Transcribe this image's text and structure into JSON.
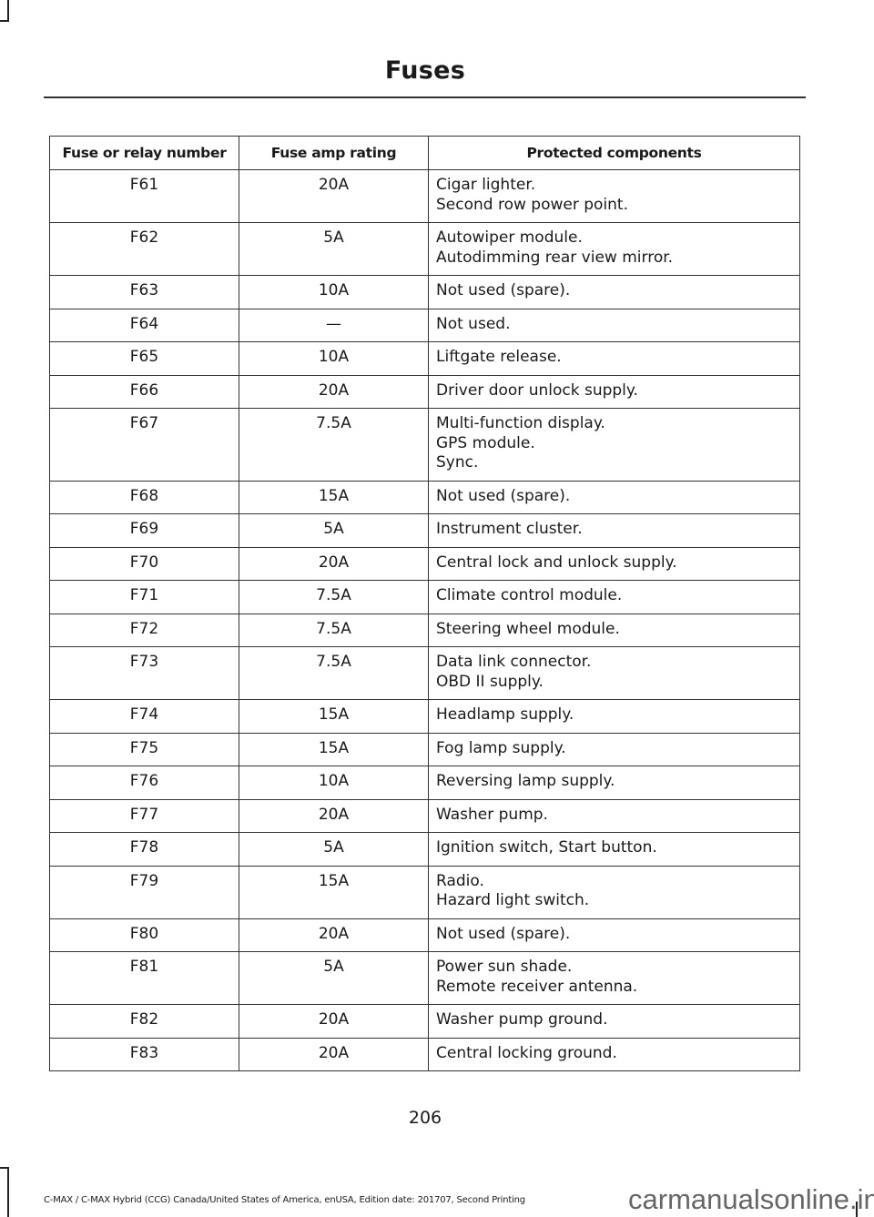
{
  "header": {
    "title": "Fuses"
  },
  "table": {
    "columns": [
      "Fuse or relay number",
      "Fuse amp rating",
      "Protected components"
    ],
    "rows": [
      {
        "fuse": "F61",
        "amp": "20A",
        "components": [
          "Cigar lighter.",
          "Second row power point."
        ]
      },
      {
        "fuse": "F62",
        "amp": "5A",
        "components": [
          "Autowiper module.",
          "Autodimming rear view mirror."
        ]
      },
      {
        "fuse": "F63",
        "amp": "10A",
        "components": [
          "Not used (spare)."
        ]
      },
      {
        "fuse": "F64",
        "amp": "—",
        "components": [
          "Not used."
        ]
      },
      {
        "fuse": "F65",
        "amp": "10A",
        "components": [
          "Liftgate release."
        ]
      },
      {
        "fuse": "F66",
        "amp": "20A",
        "components": [
          "Driver door unlock supply."
        ]
      },
      {
        "fuse": "F67",
        "amp": "7.5A",
        "components": [
          "Multi-function display.",
          "GPS module.",
          "Sync."
        ]
      },
      {
        "fuse": "F68",
        "amp": "15A",
        "components": [
          "Not used (spare)."
        ]
      },
      {
        "fuse": "F69",
        "amp": "5A",
        "components": [
          "Instrument cluster."
        ]
      },
      {
        "fuse": "F70",
        "amp": "20A",
        "components": [
          "Central lock and unlock supply."
        ]
      },
      {
        "fuse": "F71",
        "amp": "7.5A",
        "components": [
          "Climate control module."
        ]
      },
      {
        "fuse": "F72",
        "amp": "7.5A",
        "components": [
          "Steering wheel module."
        ]
      },
      {
        "fuse": "F73",
        "amp": "7.5A",
        "components": [
          "Data link connector.",
          "OBD II supply."
        ]
      },
      {
        "fuse": "F74",
        "amp": "15A",
        "components": [
          "Headlamp supply."
        ]
      },
      {
        "fuse": "F75",
        "amp": "15A",
        "components": [
          "Fog lamp supply."
        ]
      },
      {
        "fuse": "F76",
        "amp": "10A",
        "components": [
          "Reversing lamp supply."
        ]
      },
      {
        "fuse": "F77",
        "amp": "20A",
        "components": [
          "Washer pump."
        ]
      },
      {
        "fuse": "F78",
        "amp": "5A",
        "components": [
          "Ignition switch, Start button."
        ]
      },
      {
        "fuse": "F79",
        "amp": "15A",
        "components": [
          "Radio.",
          "Hazard light switch."
        ]
      },
      {
        "fuse": "F80",
        "amp": "20A",
        "components": [
          "Not used (spare)."
        ]
      },
      {
        "fuse": "F81",
        "amp": "5A",
        "components": [
          "Power sun shade.",
          "Remote receiver antenna."
        ]
      },
      {
        "fuse": "F82",
        "amp": "20A",
        "components": [
          "Washer pump ground."
        ]
      },
      {
        "fuse": "F83",
        "amp": "20A",
        "components": [
          "Central locking ground."
        ]
      }
    ]
  },
  "page_number": "206",
  "footer": {
    "text": "C-MAX / C-MAX Hybrid (CCG) Canada/United States of America, enUSA, Edition date: 201707, Second Printing"
  },
  "watermark": "carmanualsonline.info"
}
